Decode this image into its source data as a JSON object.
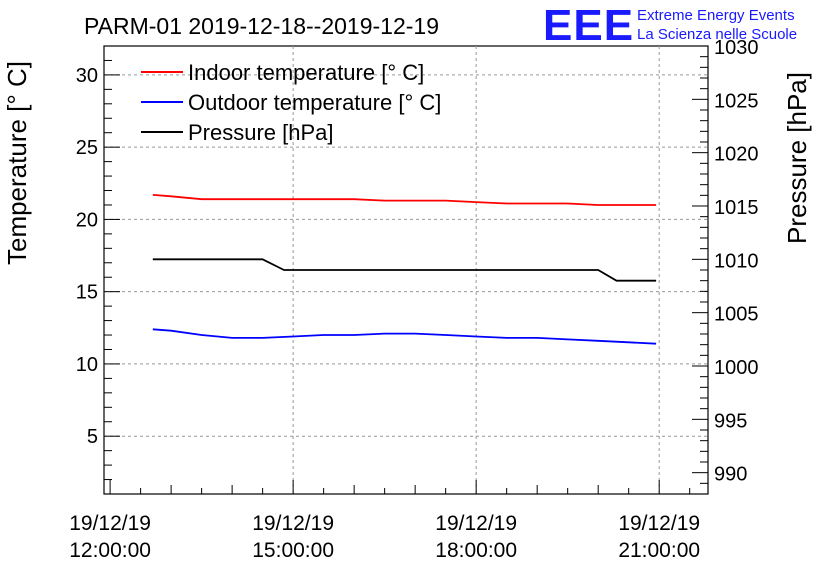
{
  "header": {
    "title": "PARM-01 2019-12-18--2019-12-19",
    "logo_text": "EEE",
    "logo_line1": "Extreme Energy Events",
    "logo_line2": "La Scienza nelle Scuole",
    "logo_color": "#1a1aff"
  },
  "chart_data": {
    "type": "line",
    "title": "PARM-01 2019-12-18--2019-12-19",
    "xlabel": "",
    "ylabel": "Temperature [° C]",
    "ylabel_right": "Pressure [hPa]",
    "x_range_hours": [
      11.9,
      21.8
    ],
    "ylim_left": [
      1,
      32
    ],
    "ylim_right": [
      988,
      1030
    ],
    "x_ticks": [
      {
        "hour": 12,
        "date": "19/12/19",
        "time": "12:00:00"
      },
      {
        "hour": 15,
        "date": "19/12/19",
        "time": "15:00:00"
      },
      {
        "hour": 18,
        "date": "19/12/19",
        "time": "18:00:00"
      },
      {
        "hour": 21,
        "date": "19/12/19",
        "time": "21:00:00"
      }
    ],
    "y_ticks_left": [
      5,
      10,
      15,
      20,
      25,
      30
    ],
    "y_ticks_right": [
      990,
      995,
      1000,
      1005,
      1010,
      1015,
      1020,
      1025,
      1030
    ],
    "grid": true,
    "legend_position": "top-left",
    "series": [
      {
        "name": "Indoor temperature [° C]",
        "color": "#ff0000",
        "axis": "left",
        "x": [
          12.7,
          13.0,
          13.5,
          14.0,
          14.5,
          15.0,
          15.5,
          16.0,
          16.5,
          17.0,
          17.5,
          18.0,
          18.5,
          19.0,
          19.5,
          20.0,
          20.5,
          20.95
        ],
        "y": [
          21.7,
          21.6,
          21.4,
          21.4,
          21.4,
          21.4,
          21.4,
          21.4,
          21.3,
          21.3,
          21.3,
          21.2,
          21.1,
          21.1,
          21.1,
          21.0,
          21.0,
          21.0
        ]
      },
      {
        "name": "Outdoor temperature [° C]",
        "color": "#0000ff",
        "axis": "left",
        "x": [
          12.7,
          13.0,
          13.5,
          14.0,
          14.5,
          15.0,
          15.5,
          16.0,
          16.5,
          17.0,
          17.5,
          18.0,
          18.5,
          19.0,
          19.5,
          20.0,
          20.5,
          20.95
        ],
        "y": [
          12.4,
          12.3,
          12.0,
          11.8,
          11.8,
          11.9,
          12.0,
          12.0,
          12.1,
          12.1,
          12.0,
          11.9,
          11.8,
          11.8,
          11.7,
          11.6,
          11.5,
          11.4
        ]
      },
      {
        "name": "Pressure [hPa]",
        "color": "#000000",
        "axis": "right",
        "x": [
          12.7,
          13.5,
          14.5,
          14.85,
          15.5,
          16.5,
          17.5,
          18.5,
          19.5,
          20.0,
          20.3,
          20.95
        ],
        "y": [
          1010,
          1010,
          1010,
          1009,
          1009,
          1009,
          1009,
          1009,
          1009,
          1009,
          1008,
          1008
        ]
      }
    ]
  }
}
